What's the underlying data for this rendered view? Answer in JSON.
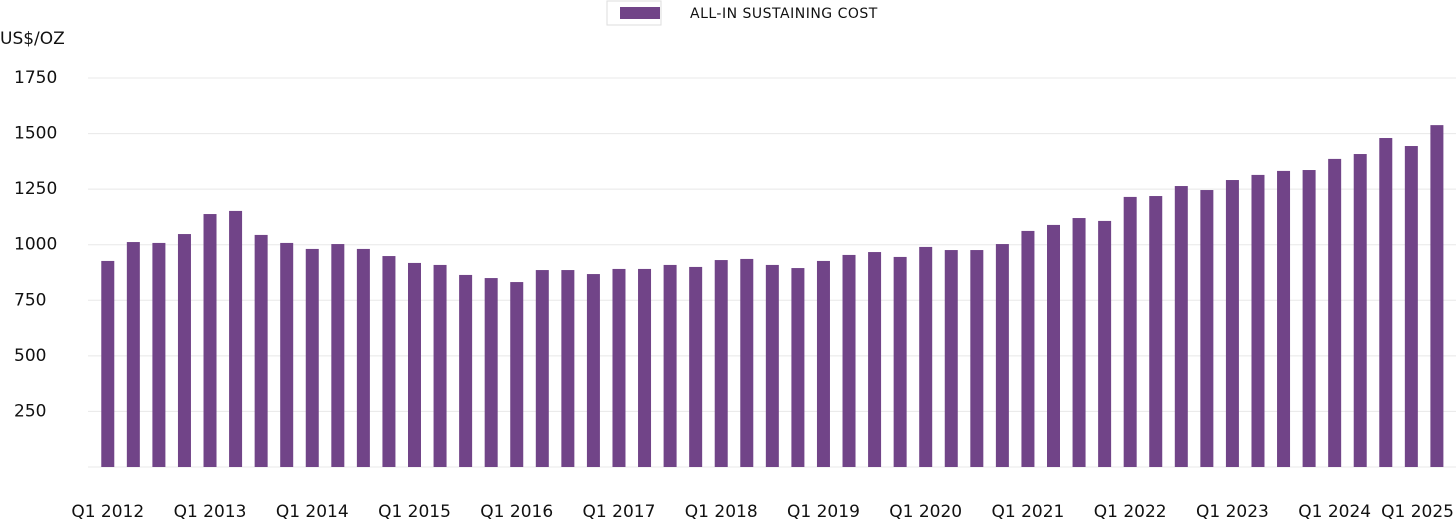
{
  "chart_data": {
    "type": "bar",
    "legend": "ALL-IN SUSTAINING COST",
    "y_label": "US$/OZ",
    "color": "#714488",
    "categories": [
      "Q1 2012",
      null,
      null,
      null,
      "Q1 2013",
      null,
      null,
      null,
      "Q1 2014",
      null,
      null,
      null,
      "Q1 2015",
      null,
      null,
      null,
      "Q1 2016",
      null,
      null,
      null,
      "Q1 2017",
      null,
      null,
      null,
      "Q1 2018",
      null,
      null,
      null,
      "Q1 2019",
      null,
      null,
      null,
      "Q1 2020",
      null,
      null,
      null,
      "Q1 2021",
      null,
      null,
      null,
      "Q1 2022",
      null,
      null,
      null,
      "Q1 2023",
      null,
      null,
      null,
      "Q1 2024",
      null,
      null,
      null,
      "Q1 2025"
    ],
    "values": [
      927,
      1012,
      1008,
      1048,
      1138,
      1152,
      1044,
      1008,
      981,
      1003,
      981,
      949,
      918,
      909,
      864,
      850,
      832,
      886,
      886,
      868,
      891,
      891,
      909,
      900,
      931,
      936,
      909,
      895,
      927,
      954,
      967,
      945,
      990,
      976,
      976,
      1003,
      1062,
      1089,
      1120,
      1107,
      1215,
      1219,
      1264,
      1246,
      1291,
      1314,
      1332,
      1336,
      1386,
      1408,
      1480,
      1444,
      1538
    ],
    "ylim": [
      0,
      1750
    ],
    "yticks": [
      250,
      500,
      750,
      1000,
      1250,
      1500,
      1750
    ],
    "grid": true
  }
}
